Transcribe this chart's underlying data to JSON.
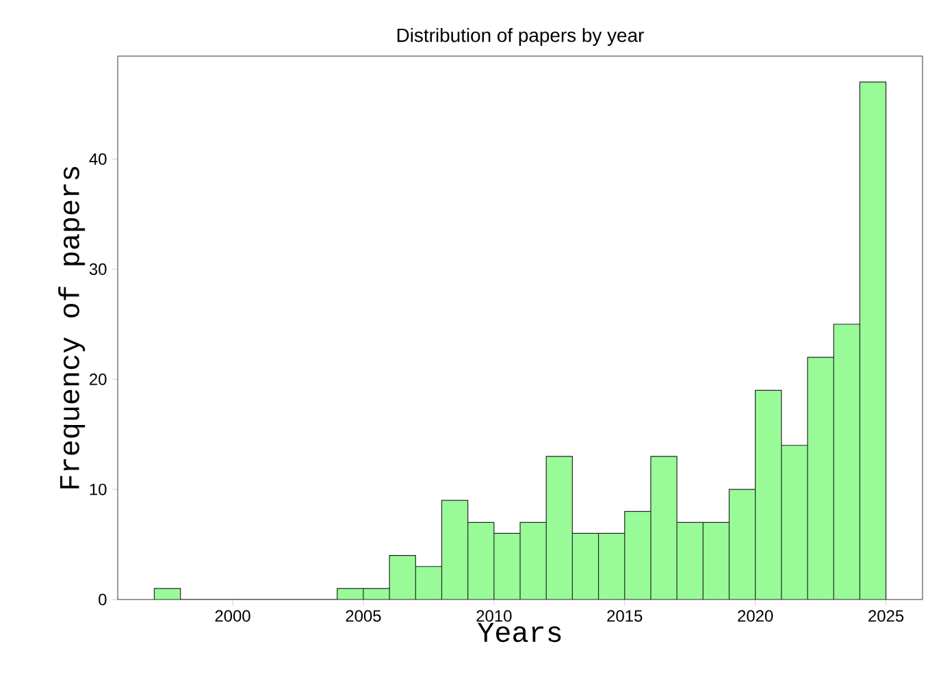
{
  "chart_data": {
    "type": "histogram",
    "title": "Distribution of papers by year",
    "xlabel": "Years",
    "ylabel": "Frequency of papers",
    "bins": [
      1997,
      1998,
      1999,
      2000,
      2001,
      2002,
      2003,
      2004,
      2005,
      2006,
      2007,
      2008,
      2009,
      2010,
      2011,
      2012,
      2013,
      2014,
      2015,
      2016,
      2017,
      2018,
      2019,
      2020,
      2021,
      2022,
      2023,
      2024,
      2025
    ],
    "values": [
      1,
      0,
      0,
      0,
      0,
      0,
      0,
      1,
      1,
      4,
      3,
      9,
      7,
      6,
      7,
      13,
      6,
      6,
      8,
      13,
      7,
      7,
      10,
      19,
      14,
      22,
      25,
      47
    ],
    "color": "#98fb98",
    "xlim": [
      1995.6,
      2026.4
    ],
    "ylim": [
      0,
      49.35
    ],
    "xticks": [
      2000,
      2005,
      2010,
      2015,
      2020,
      2025
    ],
    "yticks": [
      0,
      10,
      20,
      30,
      40
    ],
    "grid": false
  }
}
